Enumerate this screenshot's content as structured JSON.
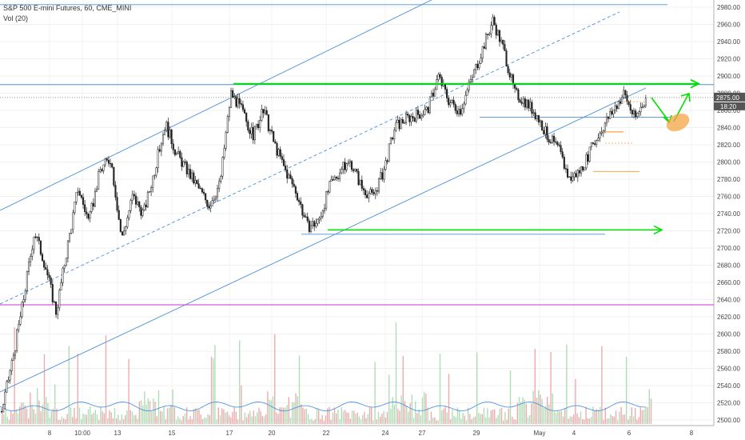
{
  "header": {
    "symbol_line": "S&P 500 E-mini Futures, 60, CME_MINI",
    "volume_line": "Vol (20)"
  },
  "chart_data": {
    "type": "candlestick",
    "ylim": [
      2490,
      2990
    ],
    "y_ticks": [
      2500,
      2520,
      2540,
      2560,
      2580,
      2600,
      2620,
      2640,
      2660,
      2680,
      2700,
      2720,
      2740,
      2760,
      2780,
      2800,
      2820,
      2840,
      2860,
      2880,
      2900,
      2920,
      2940,
      2960,
      2980
    ],
    "x_ticks": [
      "8",
      "10:00",
      "13",
      "15",
      "17",
      "20",
      "22",
      "24",
      "27",
      "29",
      "May",
      "4",
      "6",
      "8"
    ],
    "last_price_label": "2875.00",
    "countdown_label": "18:20",
    "price_path": [
      2510,
      2570,
      2640,
      2720,
      2680,
      2625,
      2700,
      2770,
      2730,
      2790,
      2805,
      2710,
      2760,
      2740,
      2790,
      2845,
      2810,
      2790,
      2770,
      2750,
      2775,
      2880,
      2860,
      2830,
      2860,
      2820,
      2790,
      2765,
      2725,
      2730,
      2770,
      2790,
      2800,
      2770,
      2760,
      2790,
      2840,
      2850,
      2855,
      2860,
      2900,
      2870,
      2860,
      2895,
      2930,
      2965,
      2930,
      2880,
      2870,
      2855,
      2830,
      2815,
      2780,
      2790,
      2815,
      2840,
      2860,
      2880,
      2850,
      2875
    ],
    "colors": {
      "up": "#26a69a",
      "down": "#ef5350",
      "channel": "#4a90d9",
      "horizontal_green": "#00e000",
      "magenta_line": "#cc33cc",
      "orange": "#f4a442",
      "volume_ma": "#3d8be0"
    }
  }
}
